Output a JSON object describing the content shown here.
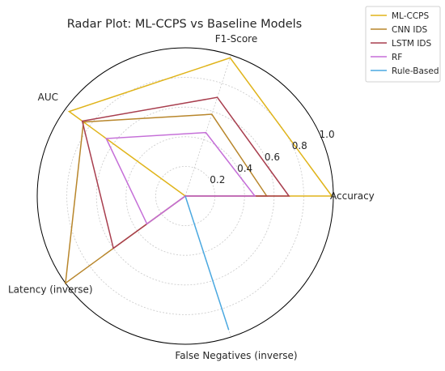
{
  "chart_data": {
    "type": "radar",
    "title": "Radar Plot: ML-CCPS vs Baseline Models",
    "axes": [
      "Accuracy",
      "F1-Score",
      "AUC",
      "Latency (inverse)",
      "False Negatives (inverse)"
    ],
    "rlim": [
      0,
      1.0
    ],
    "rticks": [
      0.2,
      0.4,
      0.6,
      0.8,
      1.0
    ],
    "rtick_labels": [
      "0.2",
      "0.4",
      "0.6",
      "0.8",
      "1.0"
    ],
    "grid": true,
    "legend_position": "top-right",
    "series": [
      {
        "name": "ML-CCPS",
        "color": "#e0b41a",
        "values": [
          0.99,
          0.98,
          0.97,
          0.0,
          0.0
        ]
      },
      {
        "name": "CNN IDS",
        "color": "#b8862b",
        "values": [
          0.55,
          0.58,
          0.85,
          1.0,
          0.0
        ]
      },
      {
        "name": "LSTM IDS",
        "color": "#a83e4e",
        "values": [
          0.7,
          0.7,
          0.86,
          0.6,
          0.0
        ]
      },
      {
        "name": "RF",
        "color": "#c56fd8",
        "values": [
          0.47,
          0.45,
          0.66,
          0.32,
          0.0
        ]
      },
      {
        "name": "Rule-Based",
        "color": "#4aa8e0",
        "values": [
          0.0,
          0.0,
          0.0,
          0.0,
          0.95
        ]
      }
    ]
  }
}
